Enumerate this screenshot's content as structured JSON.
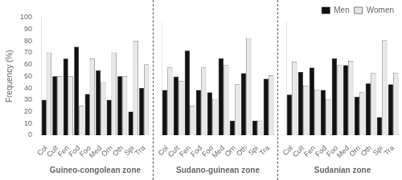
{
  "chart_data": [
    {
      "type": "bar",
      "xlabel": "Guineo-congolean zone",
      "ylabel": "Frequency (%)",
      "categories": [
        "Col",
        "Cult",
        "Fen",
        "Fod",
        "Foo",
        "Med",
        "Orn",
        "Oth",
        "Spi",
        "Tra"
      ],
      "series": [
        {
          "name": "Men",
          "color": "#111111",
          "values": [
            30,
            50,
            65,
            75,
            35,
            55,
            30,
            50,
            20,
            40
          ]
        },
        {
          "name": "Women",
          "color": "#e8e8e8",
          "values": [
            70,
            50,
            50,
            25,
            65,
            45,
            70,
            50,
            80,
            60
          ]
        }
      ],
      "ylim": [
        0,
        100
      ],
      "yticks": [
        0,
        10,
        20,
        30,
        40,
        50,
        60,
        70,
        80,
        90,
        100
      ],
      "grid": false
    },
    {
      "type": "bar",
      "xlabel": "Sudano-guinean zone",
      "categories": [
        "Col",
        "Cult",
        "Fen",
        "Fod",
        "Foo",
        "Med",
        "Orn",
        "Oth",
        "Spi",
        "Tra"
      ],
      "series": [
        {
          "name": "Men",
          "color": "#111111",
          "values": [
            40,
            52,
            75,
            40,
            38,
            68,
            13,
            55,
            13,
            50
          ]
        },
        {
          "name": "Women",
          "color": "#e8e8e8",
          "values": [
            60,
            48,
            26,
            60,
            32,
            62,
            45,
            86,
            13,
            53
          ]
        }
      ],
      "ylim": [
        0,
        100
      ],
      "yticks": [
        0,
        10,
        20,
        30,
        40,
        50,
        60,
        70,
        80,
        90,
        100
      ],
      "grid": false,
      "tick_labels": "x"
    },
    {
      "type": "bar",
      "xlabel": "Sudanian zone",
      "categories": [
        "Col",
        "Cult",
        "Fen",
        "Fod",
        "Foo",
        "Med",
        "Orn",
        "Oth",
        "Spi",
        "Tra"
      ],
      "series": [
        {
          "name": "Men",
          "color": "#111111",
          "values": [
            36,
            56,
            60,
            40,
            68,
            62,
            34,
            46,
            16,
            45
          ]
        },
        {
          "name": "Women",
          "color": "#e8e8e8",
          "values": [
            65,
            44,
            40,
            32,
            62,
            66,
            38,
            55,
            84,
            55
          ]
        }
      ],
      "ylim": [
        0,
        100
      ],
      "yticks": [
        0,
        10,
        20,
        30,
        40,
        50,
        60,
        70,
        80,
        90,
        100
      ],
      "grid": false,
      "tick_labels": "x",
      "legend": "upper right"
    }
  ]
}
